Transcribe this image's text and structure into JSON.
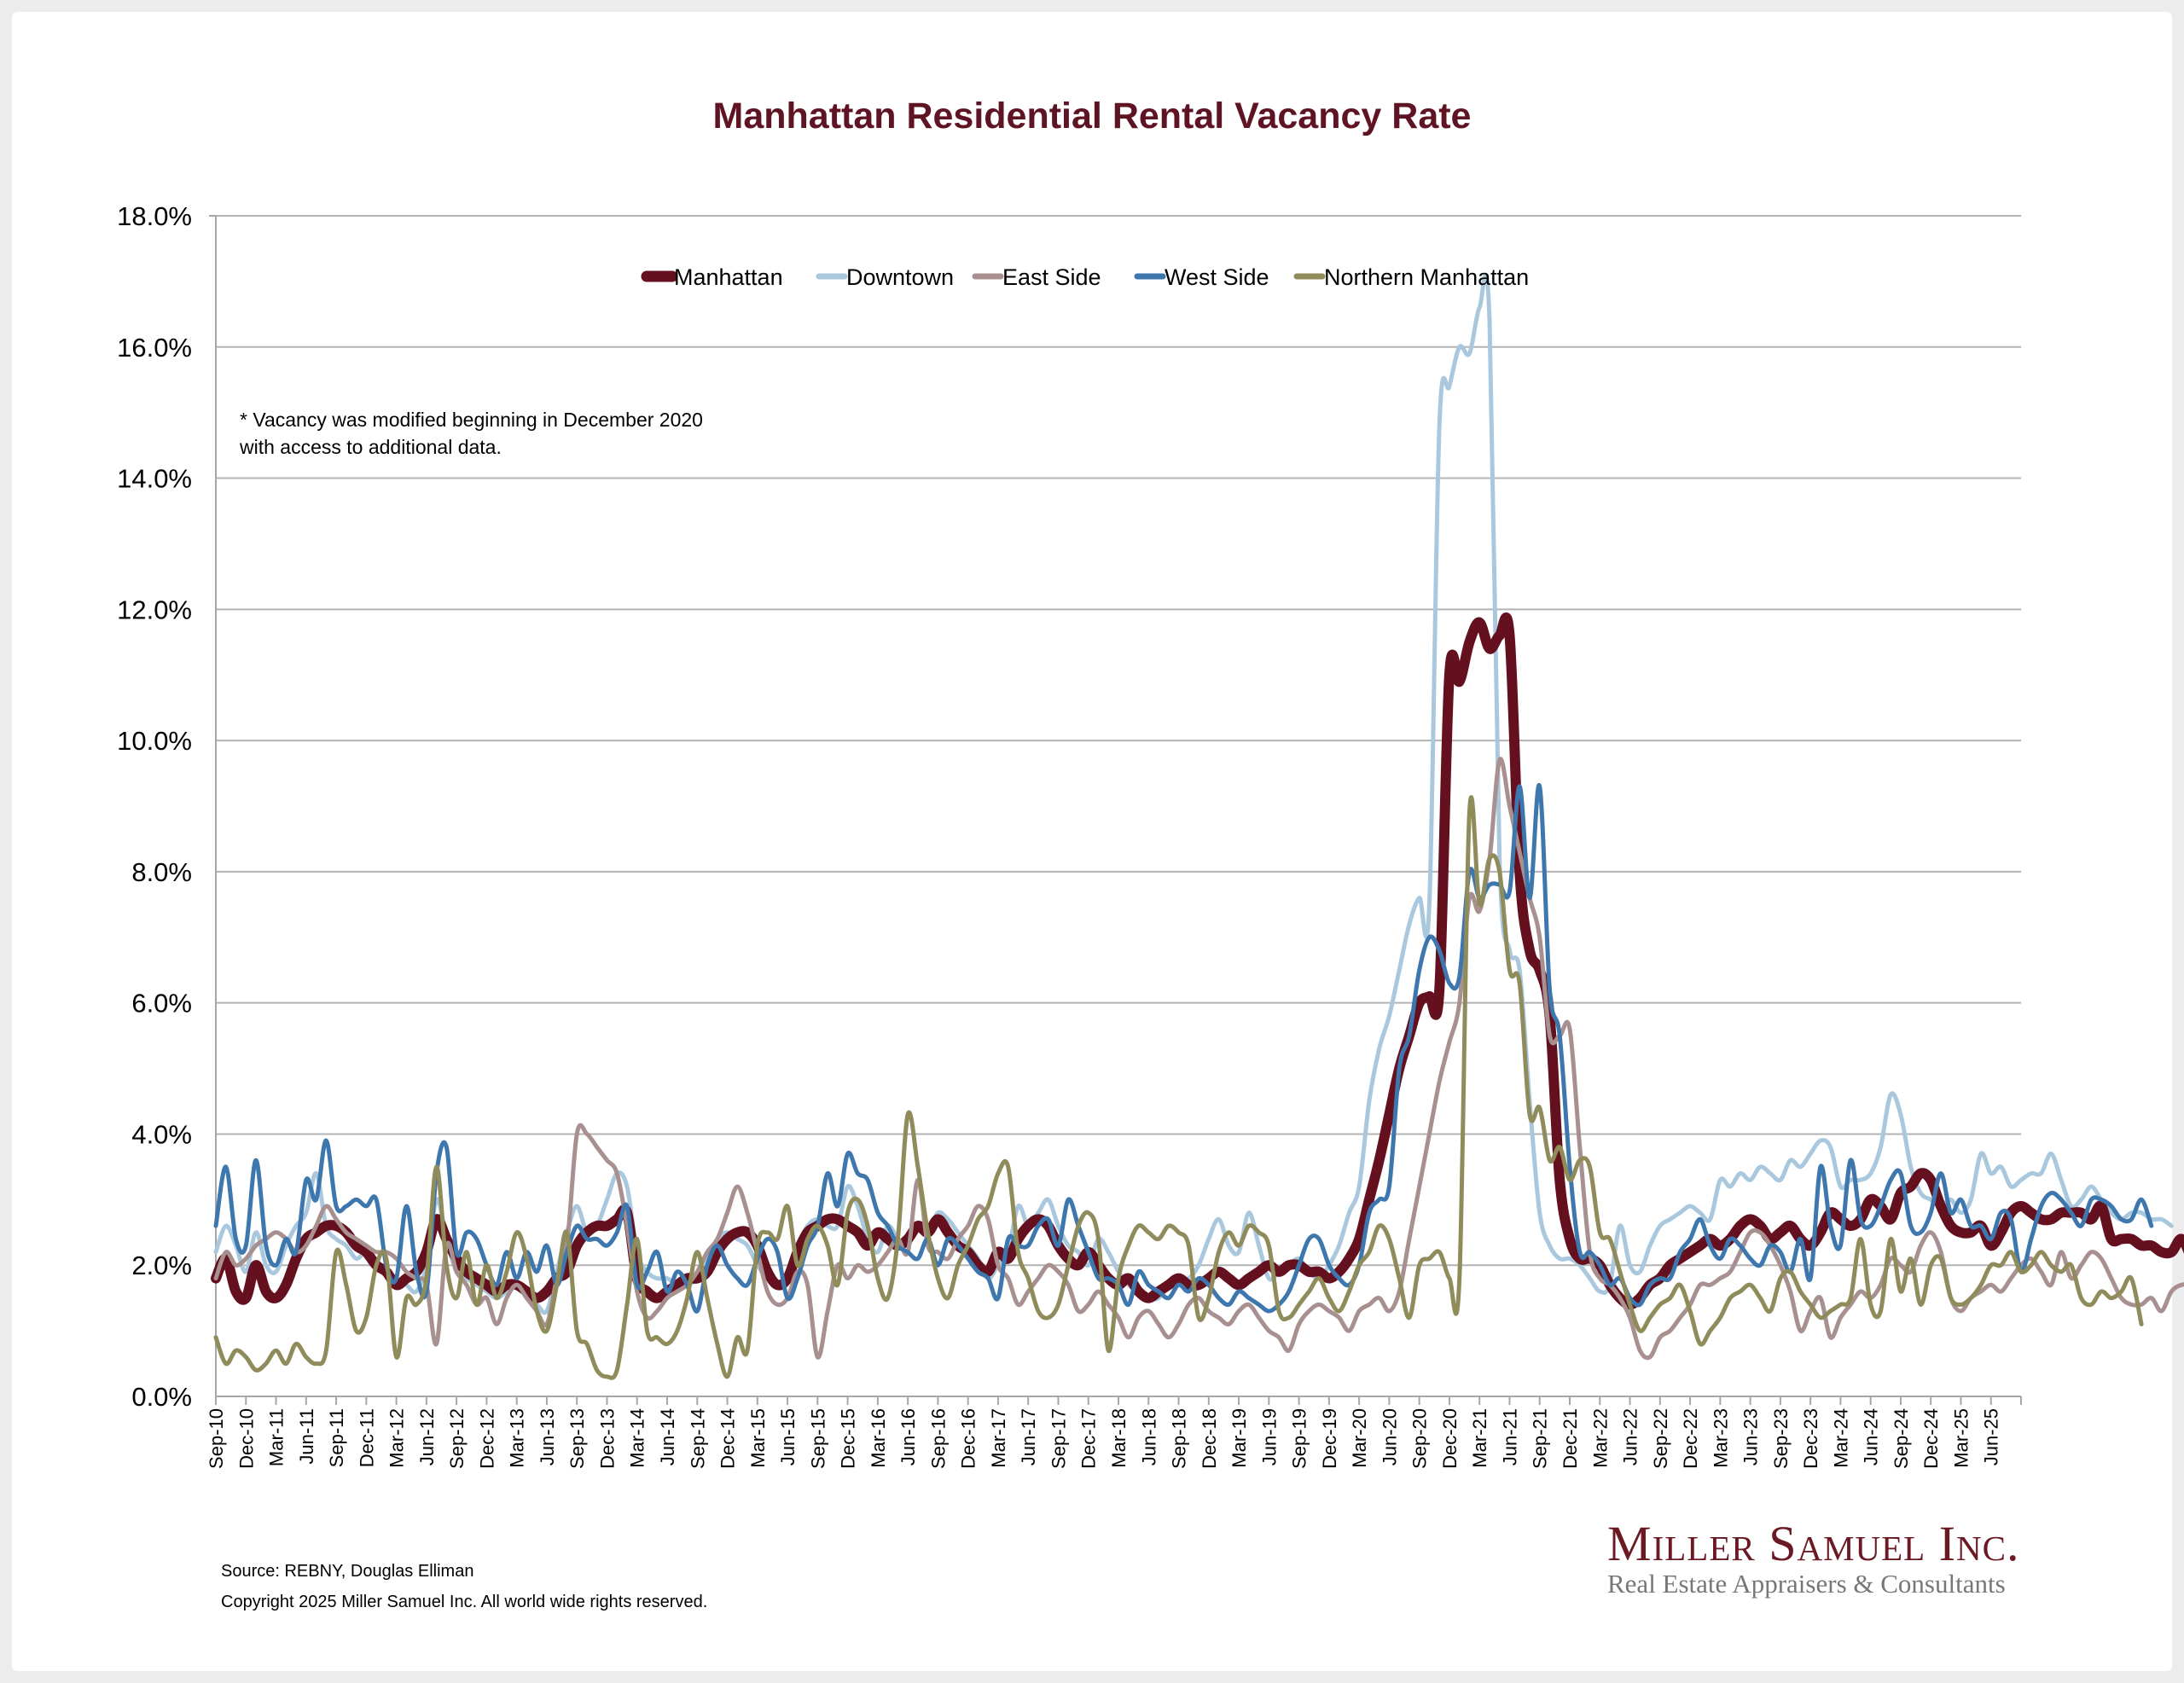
{
  "chart_data": {
    "type": "line",
    "title": "Manhattan Residential Rental Vacancy Rate",
    "xlabel": "",
    "ylabel": "",
    "ylim": [
      0,
      18
    ],
    "y_ticks": [
      "0.0%",
      "2.0%",
      "4.0%",
      "6.0%",
      "8.0%",
      "10.0%",
      "12.0%",
      "14.0%",
      "16.0%",
      "18.0%"
    ],
    "y_tick_values": [
      0,
      2,
      4,
      6,
      8,
      10,
      12,
      14,
      16,
      18
    ],
    "grid": true,
    "legend_position": "top-center",
    "x_start": "Sep-10",
    "x_frequency": "monthly",
    "x_tick_labels": [
      "Sep-10",
      "Dec-10",
      "Mar-11",
      "Jun-11",
      "Sep-11",
      "Dec-11",
      "Mar-12",
      "Jun-12",
      "Sep-12",
      "Dec-12",
      "Mar-13",
      "Jun-13",
      "Sep-13",
      "Dec-13",
      "Mar-14",
      "Jun-14",
      "Sep-14",
      "Dec-14",
      "Mar-15",
      "Jun-15",
      "Sep-15",
      "Dec-15",
      "Mar-16",
      "Jun-16",
      "Sep-16",
      "Dec-16",
      "Mar-17",
      "Jun-17",
      "Sep-17",
      "Dec-17",
      "Mar-18",
      "Jun-18",
      "Sep-18",
      "Dec-18",
      "Mar-19",
      "Jun-19",
      "Sep-19",
      "Dec-19",
      "Mar-20",
      "Jun-20",
      "Sep-20",
      "Dec-20",
      "Mar-21",
      "Jun-21",
      "Sep-21",
      "Dec-21",
      "Mar-22",
      "Jun-22",
      "Sep-22",
      "Dec-22",
      "Mar-23",
      "Jun-23",
      "Sep-23",
      "Dec-23",
      "Mar-24",
      "Jun-24",
      "Sep-24",
      "Dec-24",
      "Mar-25",
      "Jun-25",
      ""
    ],
    "series": [
      {
        "name": "Manhattan",
        "color": "#64101f",
        "values": [
          1.8,
          2.1,
          1.6,
          1.5,
          2.0,
          1.6,
          1.5,
          1.7,
          2.1,
          2.4,
          2.5,
          2.6,
          2.6,
          2.5,
          2.3,
          2.2,
          2.0,
          1.9,
          1.7,
          1.8,
          1.9,
          2.2,
          2.7,
          2.4,
          2.1,
          1.9,
          1.8,
          1.7,
          1.6,
          1.7,
          1.7,
          1.6,
          1.5,
          1.6,
          1.8,
          1.9,
          2.3,
          2.5,
          2.6,
          2.6,
          2.7,
          2.8,
          1.8,
          1.6,
          1.5,
          1.6,
          1.7,
          1.8,
          1.8,
          1.9,
          2.2,
          2.4,
          2.5,
          2.5,
          2.3,
          1.9,
          1.7,
          1.8,
          2.2,
          2.5,
          2.6,
          2.7,
          2.7,
          2.6,
          2.5,
          2.3,
          2.5,
          2.4,
          2.3,
          2.4,
          2.6,
          2.5,
          2.7,
          2.5,
          2.3,
          2.2,
          2.0,
          1.9,
          2.2,
          2.1,
          2.4,
          2.6,
          2.7,
          2.6,
          2.3,
          2.1,
          2.0,
          2.2,
          2.0,
          1.8,
          1.7,
          1.8,
          1.6,
          1.5,
          1.6,
          1.7,
          1.8,
          1.7,
          1.7,
          1.8,
          1.9,
          1.8,
          1.7,
          1.8,
          1.9,
          2.0,
          1.9,
          2.0,
          2.0,
          1.9,
          1.9,
          1.8,
          1.9,
          2.1,
          2.4,
          3.0,
          3.6,
          4.3,
          5.0,
          5.5,
          6.0,
          6.1,
          6.2,
          11.0,
          10.9,
          11.5,
          11.8,
          11.4,
          11.6,
          11.6,
          8.0,
          6.8,
          6.5,
          5.8,
          3.3,
          2.4,
          2.1,
          2.1,
          2.0,
          1.7,
          1.5,
          1.4,
          1.5,
          1.7,
          1.8,
          2.0,
          2.1,
          2.2,
          2.3,
          2.4,
          2.3,
          2.4,
          2.6,
          2.7,
          2.6,
          2.4,
          2.5,
          2.6,
          2.4,
          2.3,
          2.5,
          2.8,
          2.7,
          2.6,
          2.7,
          3.0,
          2.9,
          2.7,
          3.1,
          3.2,
          3.4,
          3.3,
          2.9,
          2.6,
          2.5,
          2.5,
          2.6,
          2.3,
          2.5,
          2.8,
          2.9,
          2.8,
          2.7,
          2.7,
          2.8,
          2.8,
          2.8,
          2.7,
          2.9,
          2.4,
          2.4,
          2.4,
          2.3,
          2.3,
          2.2,
          2.2,
          2.4,
          2.1
        ]
      },
      {
        "name": "Downtown",
        "color": "#a9c8de",
        "values": [
          2.2,
          2.6,
          2.3,
          1.9,
          2.5,
          2.0,
          1.9,
          2.3,
          2.6,
          2.8,
          3.4,
          2.6,
          2.4,
          2.3,
          2.1,
          2.2,
          2.0,
          1.9,
          1.8,
          1.7,
          1.6,
          2.0,
          3.0,
          2.4,
          1.9,
          1.8,
          1.7,
          1.6,
          1.5,
          1.6,
          1.7,
          1.5,
          1.4,
          1.3,
          1.9,
          2.5,
          2.9,
          2.5,
          2.6,
          3.0,
          3.4,
          3.2,
          2.2,
          1.9,
          1.8,
          1.8,
          1.7,
          1.7,
          1.8,
          2.1,
          2.4,
          2.5,
          2.4,
          2.3,
          2.0,
          1.8,
          1.7,
          1.9,
          2.3,
          2.6,
          2.7,
          2.6,
          2.6,
          3.2,
          2.9,
          2.4,
          2.2,
          2.6,
          2.4,
          2.3,
          2.6,
          2.5,
          2.8,
          2.7,
          2.5,
          2.3,
          2.1,
          1.8,
          2.0,
          2.2,
          2.9,
          2.6,
          2.8,
          3.0,
          2.6,
          2.3,
          2.2,
          2.0,
          2.4,
          2.2,
          1.9,
          1.7,
          1.6,
          1.5,
          1.5,
          1.7,
          1.8,
          1.8,
          2.0,
          2.4,
          2.7,
          2.3,
          2.2,
          2.8,
          2.3,
          1.8,
          1.9,
          2.0,
          2.1,
          1.9,
          1.8,
          2.0,
          2.3,
          2.8,
          3.2,
          4.5,
          5.3,
          5.8,
          6.5,
          7.2,
          7.6,
          7.5,
          14.8,
          15.4,
          16.0,
          15.9,
          16.6,
          16.4,
          8.2,
          6.8,
          6.5,
          4.5,
          2.8,
          2.3,
          2.1,
          2.1,
          2.0,
          1.8,
          1.6,
          1.7,
          2.6,
          2.0,
          1.9,
          2.3,
          2.6,
          2.7,
          2.8,
          2.9,
          2.8,
          2.7,
          3.3,
          3.2,
          3.4,
          3.3,
          3.5,
          3.4,
          3.3,
          3.6,
          3.5,
          3.7,
          3.9,
          3.8,
          3.2,
          3.3,
          3.3,
          3.4,
          3.8,
          4.6,
          4.3,
          3.5,
          3.1,
          3.0,
          2.9,
          3.0,
          2.8,
          3.0,
          3.7,
          3.4,
          3.5,
          3.2,
          3.3,
          3.4,
          3.4,
          3.7,
          3.3,
          2.9,
          3.0,
          3.2,
          3.0,
          2.8,
          2.7,
          2.8,
          2.8,
          2.7,
          2.7,
          2.6
        ]
      },
      {
        "name": "East Side",
        "color": "#a89090",
        "values": [
          1.8,
          2.2,
          2.0,
          2.1,
          2.3,
          2.4,
          2.5,
          2.4,
          2.2,
          2.3,
          2.6,
          2.9,
          2.7,
          2.5,
          2.4,
          2.3,
          2.2,
          2.2,
          2.1,
          1.9,
          1.8,
          1.7,
          0.8,
          2.3,
          1.9,
          1.7,
          1.4,
          1.5,
          1.1,
          1.5,
          1.7,
          1.5,
          1.3,
          1.1,
          1.8,
          2.3,
          4.0,
          4.0,
          3.8,
          3.6,
          3.4,
          2.6,
          1.6,
          1.2,
          1.3,
          1.5,
          1.6,
          1.7,
          1.9,
          2.2,
          2.4,
          2.8,
          3.2,
          2.8,
          2.2,
          1.6,
          1.4,
          1.5,
          1.9,
          1.7,
          0.6,
          1.3,
          2.0,
          1.8,
          2.0,
          1.9,
          2.0,
          2.2,
          2.4,
          2.2,
          3.3,
          2.3,
          2.2,
          2.1,
          2.4,
          2.6,
          2.9,
          2.7,
          2.0,
          1.8,
          1.4,
          1.6,
          1.8,
          2.0,
          1.9,
          1.7,
          1.3,
          1.4,
          1.6,
          1.4,
          1.2,
          0.9,
          1.2,
          1.3,
          1.1,
          0.9,
          1.1,
          1.4,
          1.5,
          1.3,
          1.2,
          1.1,
          1.3,
          1.4,
          1.2,
          1.0,
          0.9,
          0.7,
          1.1,
          1.3,
          1.4,
          1.3,
          1.2,
          1.0,
          1.3,
          1.4,
          1.5,
          1.3,
          1.6,
          2.4,
          3.2,
          4.0,
          4.8,
          5.4,
          6.0,
          7.6,
          7.4,
          8.2,
          9.7,
          9.0,
          8.3,
          7.6,
          7.0,
          5.5,
          5.5,
          5.6,
          3.8,
          2.2,
          1.8,
          1.7,
          1.5,
          1.2,
          0.7,
          0.6,
          0.9,
          1.0,
          1.2,
          1.4,
          1.7,
          1.7,
          1.8,
          1.9,
          2.2,
          2.5,
          2.5,
          2.3,
          2.0,
          1.6,
          1.0,
          1.3,
          1.5,
          0.9,
          1.2,
          1.4,
          1.6,
          1.5,
          1.7,
          2.1,
          2.0,
          1.9,
          2.3,
          2.5,
          2.2,
          1.5,
          1.3,
          1.5,
          1.6,
          1.7,
          1.6,
          1.8,
          2.0,
          2.1,
          1.9,
          1.7,
          2.2,
          1.8,
          2.0,
          2.2,
          2.1,
          1.8,
          1.5,
          1.4,
          1.4,
          1.5,
          1.3,
          1.6,
          1.7,
          1.7
        ]
      },
      {
        "name": "West Side",
        "color": "#3e77ad",
        "values": [
          2.6,
          3.5,
          2.4,
          2.3,
          3.6,
          2.3,
          2.0,
          2.4,
          2.2,
          3.3,
          3.0,
          3.9,
          2.9,
          2.9,
          3.0,
          2.9,
          3.0,
          2.0,
          1.8,
          2.9,
          1.9,
          1.6,
          3.4,
          3.8,
          2.2,
          2.5,
          2.4,
          2.0,
          1.7,
          2.2,
          1.8,
          2.2,
          1.9,
          2.3,
          1.7,
          2.2,
          2.6,
          2.4,
          2.4,
          2.3,
          2.5,
          2.9,
          1.7,
          1.9,
          2.2,
          1.6,
          1.9,
          1.7,
          1.3,
          2.0,
          2.3,
          2.0,
          1.8,
          1.7,
          2.1,
          2.4,
          2.2,
          1.5,
          1.8,
          2.3,
          2.6,
          3.4,
          2.9,
          3.7,
          3.4,
          3.3,
          2.8,
          2.6,
          2.3,
          2.2,
          2.1,
          2.4,
          2.0,
          2.4,
          2.3,
          2.1,
          1.9,
          1.8,
          1.5,
          2.4,
          2.3,
          2.3,
          2.6,
          2.7,
          2.3,
          3.0,
          2.6,
          2.2,
          1.8,
          1.8,
          1.7,
          1.4,
          1.9,
          1.7,
          1.6,
          1.5,
          1.7,
          1.6,
          1.8,
          1.7,
          1.5,
          1.4,
          1.6,
          1.5,
          1.4,
          1.3,
          1.4,
          1.6,
          2.0,
          2.4,
          2.4,
          2.0,
          1.8,
          1.7,
          2.0,
          2.8,
          3.0,
          3.2,
          5.0,
          5.5,
          6.5,
          7.0,
          6.8,
          6.3,
          6.4,
          8.0,
          7.6,
          7.8,
          7.8,
          7.7,
          9.3,
          7.6,
          9.3,
          6.2,
          5.5,
          3.5,
          2.2,
          2.2,
          2.0,
          1.7,
          1.8,
          1.5,
          1.4,
          1.7,
          1.8,
          1.8,
          2.2,
          2.4,
          2.7,
          2.3,
          2.1,
          2.4,
          2.3,
          2.1,
          2.0,
          2.3,
          2.2,
          1.9,
          2.4,
          1.8,
          3.5,
          2.6,
          2.3,
          3.6,
          2.7,
          2.6,
          2.9,
          3.3,
          3.4,
          2.6,
          2.5,
          2.8,
          3.4,
          2.8,
          3.0,
          2.6,
          2.6,
          2.4,
          2.8,
          2.7,
          1.9,
          2.4,
          2.9,
          3.1,
          3.0,
          2.8,
          2.6,
          3.0,
          3.0,
          2.9,
          2.7,
          2.7,
          3.0,
          2.6
        ]
      },
      {
        "name": "Northern Manhattan",
        "color": "#8f8b5a",
        "values": [
          0.9,
          0.5,
          0.7,
          0.6,
          0.4,
          0.5,
          0.7,
          0.5,
          0.8,
          0.6,
          0.5,
          0.7,
          2.2,
          1.7,
          1.0,
          1.2,
          2.0,
          2.1,
          0.6,
          1.5,
          1.4,
          1.8,
          3.5,
          2.0,
          1.5,
          2.2,
          1.4,
          2.0,
          1.5,
          1.9,
          2.5,
          2.1,
          1.3,
          1.0,
          1.7,
          2.5,
          1.0,
          0.8,
          0.4,
          0.3,
          0.4,
          1.4,
          2.4,
          1.0,
          0.9,
          0.8,
          1.0,
          1.5,
          2.2,
          1.5,
          0.8,
          0.3,
          0.9,
          0.7,
          2.3,
          2.5,
          2.4,
          2.9,
          2.0,
          2.4,
          2.6,
          2.3,
          1.7,
          2.8,
          3.0,
          2.6,
          1.8,
          1.5,
          2.4,
          4.3,
          3.5,
          2.5,
          1.8,
          1.5,
          2.0,
          2.3,
          2.7,
          2.9,
          3.4,
          3.5,
          2.2,
          1.8,
          1.3,
          1.2,
          1.4,
          2.0,
          2.6,
          2.8,
          2.4,
          0.7,
          1.8,
          2.3,
          2.6,
          2.5,
          2.4,
          2.6,
          2.5,
          2.3,
          1.2,
          1.5,
          2.2,
          2.5,
          2.3,
          2.6,
          2.5,
          2.3,
          1.3,
          1.2,
          1.4,
          1.6,
          1.8,
          1.5,
          1.3,
          1.6,
          2.0,
          2.2,
          2.6,
          2.4,
          1.8,
          1.2,
          2.0,
          2.1,
          2.2,
          1.8,
          1.8,
          8.9,
          7.5,
          8.2,
          8.0,
          6.5,
          6.3,
          4.3,
          4.4,
          3.6,
          3.8,
          3.3,
          3.6,
          3.5,
          2.5,
          2.4,
          1.9,
          1.4,
          1.0,
          1.2,
          1.4,
          1.5,
          1.7,
          1.3,
          0.8,
          1.0,
          1.2,
          1.5,
          1.6,
          1.7,
          1.5,
          1.3,
          1.8,
          1.9,
          1.6,
          1.4,
          1.2,
          1.3,
          1.4,
          1.5,
          2.4,
          1.4,
          1.3,
          2.4,
          1.6,
          2.1,
          1.4,
          2.0,
          2.1,
          1.5,
          1.4,
          1.5,
          1.7,
          2.0,
          2.0,
          2.2,
          1.9,
          2.0,
          2.2,
          2.0,
          1.9,
          2.0,
          1.5,
          1.4,
          1.6,
          1.5,
          1.6,
          1.8,
          1.1
        ]
      }
    ]
  },
  "note": {
    "line1": "* Vacancy was modified beginning in December 2020",
    "line2": "with access to additional data."
  },
  "footer": {
    "source": "Source: REBNY, Douglas Elliman",
    "copyright": "Copyright 2025 Miller Samuel Inc.  All world wide rights reserved."
  },
  "logo": {
    "name": "Miller Samuel Inc.",
    "tagline": "Real Estate Appraisers & Consultants"
  }
}
